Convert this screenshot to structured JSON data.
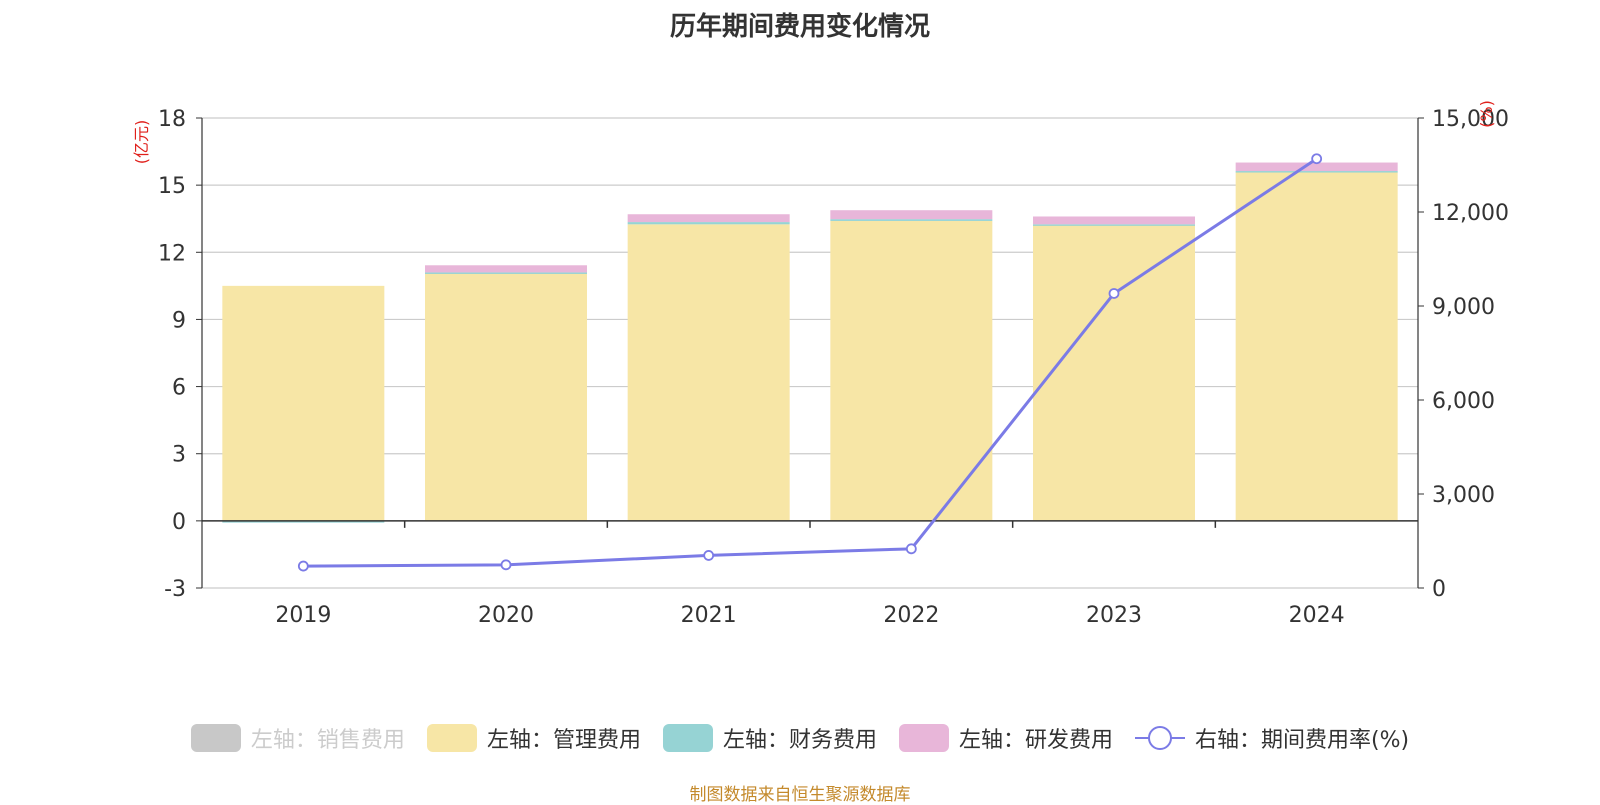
{
  "title": "历年期间费用变化情况",
  "source": "制图数据来自恒生聚源数据库",
  "legend": [
    {
      "label": "左轴：销售费用",
      "color": "#c8c8c8",
      "kind": "bar",
      "disabled": true
    },
    {
      "label": "左轴：管理费用",
      "color": "#f7e6a6",
      "kind": "bar",
      "disabled": false
    },
    {
      "label": "左轴：财务费用",
      "color": "#96d3d4",
      "kind": "bar",
      "disabled": false
    },
    {
      "label": "左轴：研发费用",
      "color": "#e8b6d9",
      "kind": "bar",
      "disabled": false
    },
    {
      "label": "右轴：期间费用率(%)",
      "color": "#7b7be6",
      "kind": "line",
      "disabled": false
    }
  ],
  "chart_data": {
    "type": "bar",
    "categories": [
      "2019",
      "2020",
      "2021",
      "2022",
      "2023",
      "2024"
    ],
    "left_axis": {
      "unit": "(亿元)",
      "ticks": [
        "18",
        "15",
        "12",
        "9",
        "6",
        "3",
        "0",
        "-3"
      ],
      "ylim": [
        -3,
        18
      ]
    },
    "right_axis": {
      "unit": "(%)",
      "ticks": [
        "15,000",
        "12,000",
        "9,000",
        "6,000",
        "3,000",
        "0"
      ],
      "ylim": [
        0,
        15000
      ]
    },
    "series": [
      {
        "name": "左轴：管理费用",
        "axis": "left",
        "type": "bar",
        "color": "#f7e6a6",
        "values": [
          10.5,
          11.05,
          13.25,
          13.4,
          13.2,
          15.6
        ]
      },
      {
        "name": "左轴：财务费用",
        "axis": "left",
        "type": "bar",
        "color": "#96d3d4",
        "values": [
          -0.08,
          0.05,
          0.1,
          0.08,
          0.05,
          0.03
        ]
      },
      {
        "name": "左轴：研发费用",
        "axis": "left",
        "type": "bar",
        "color": "#e8b6d9",
        "values": [
          0.0,
          0.32,
          0.35,
          0.4,
          0.35,
          0.38
        ]
      },
      {
        "name": "右轴：期间费用率(%)",
        "axis": "right",
        "type": "line",
        "color": "#7b7be6",
        "values": [
          700,
          740,
          1040,
          1250,
          9400,
          13700
        ]
      }
    ],
    "grid": true
  }
}
